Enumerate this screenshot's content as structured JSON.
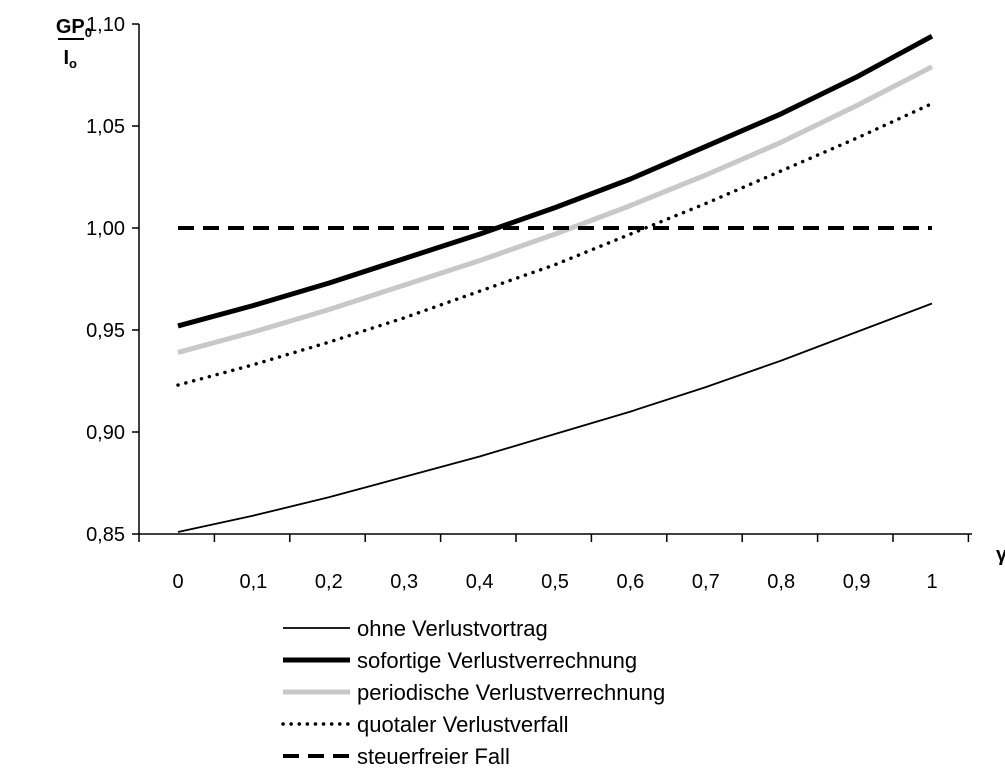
{
  "chart_data": {
    "type": "line",
    "ylabel": {
      "numerator": "GP",
      "numerator_sub": "0",
      "denominator": "I",
      "denominator_sub": "o"
    },
    "xlabel": "γ",
    "ylim": [
      0.85,
      1.1
    ],
    "y_ticks": [
      "0,85",
      "0,90",
      "0,95",
      "1,00",
      "1,05",
      "1,10"
    ],
    "y_tick_values": [
      0.85,
      0.9,
      0.95,
      1.0,
      1.05,
      1.1
    ],
    "x_ticks": [
      "0",
      "0,1",
      "0,2",
      "0,3",
      "0,4",
      "0,5",
      "0,6",
      "0,7",
      "0,8",
      "0,9",
      "1"
    ],
    "x": [
      0,
      0.1,
      0.2,
      0.3,
      0.4,
      0.5,
      0.6,
      0.7,
      0.8,
      0.9,
      1.0
    ],
    "grid": false,
    "legend_position": "bottom",
    "series": [
      {
        "name": "ohne Verlustvortrag",
        "style": "thin-solid",
        "color": "#000000",
        "values": [
          0.851,
          0.859,
          0.868,
          0.878,
          0.888,
          0.899,
          0.91,
          0.922,
          0.935,
          0.949,
          0.963
        ]
      },
      {
        "name": "sofortige Verlustverrechnung",
        "style": "thick-solid",
        "color": "#000000",
        "values": [
          0.952,
          0.962,
          0.973,
          0.985,
          0.997,
          1.01,
          1.024,
          1.04,
          1.056,
          1.074,
          1.094
        ]
      },
      {
        "name": "periodische Verlustverrechnung",
        "style": "thick-solid",
        "color": "#c8c8c8",
        "values": [
          0.939,
          0.949,
          0.96,
          0.972,
          0.984,
          0.997,
          1.011,
          1.026,
          1.042,
          1.06,
          1.079
        ]
      },
      {
        "name": "quotaler Verlustverfall",
        "style": "dotted",
        "color": "#000000",
        "values": [
          0.923,
          0.933,
          0.944,
          0.956,
          0.969,
          0.982,
          0.997,
          1.012,
          1.028,
          1.044,
          1.061
        ]
      },
      {
        "name": "steuerfreier Fall",
        "style": "dashed",
        "color": "#000000",
        "values": [
          1.0,
          1.0,
          1.0,
          1.0,
          1.0,
          1.0,
          1.0,
          1.0,
          1.0,
          1.0,
          1.0
        ]
      }
    ]
  }
}
